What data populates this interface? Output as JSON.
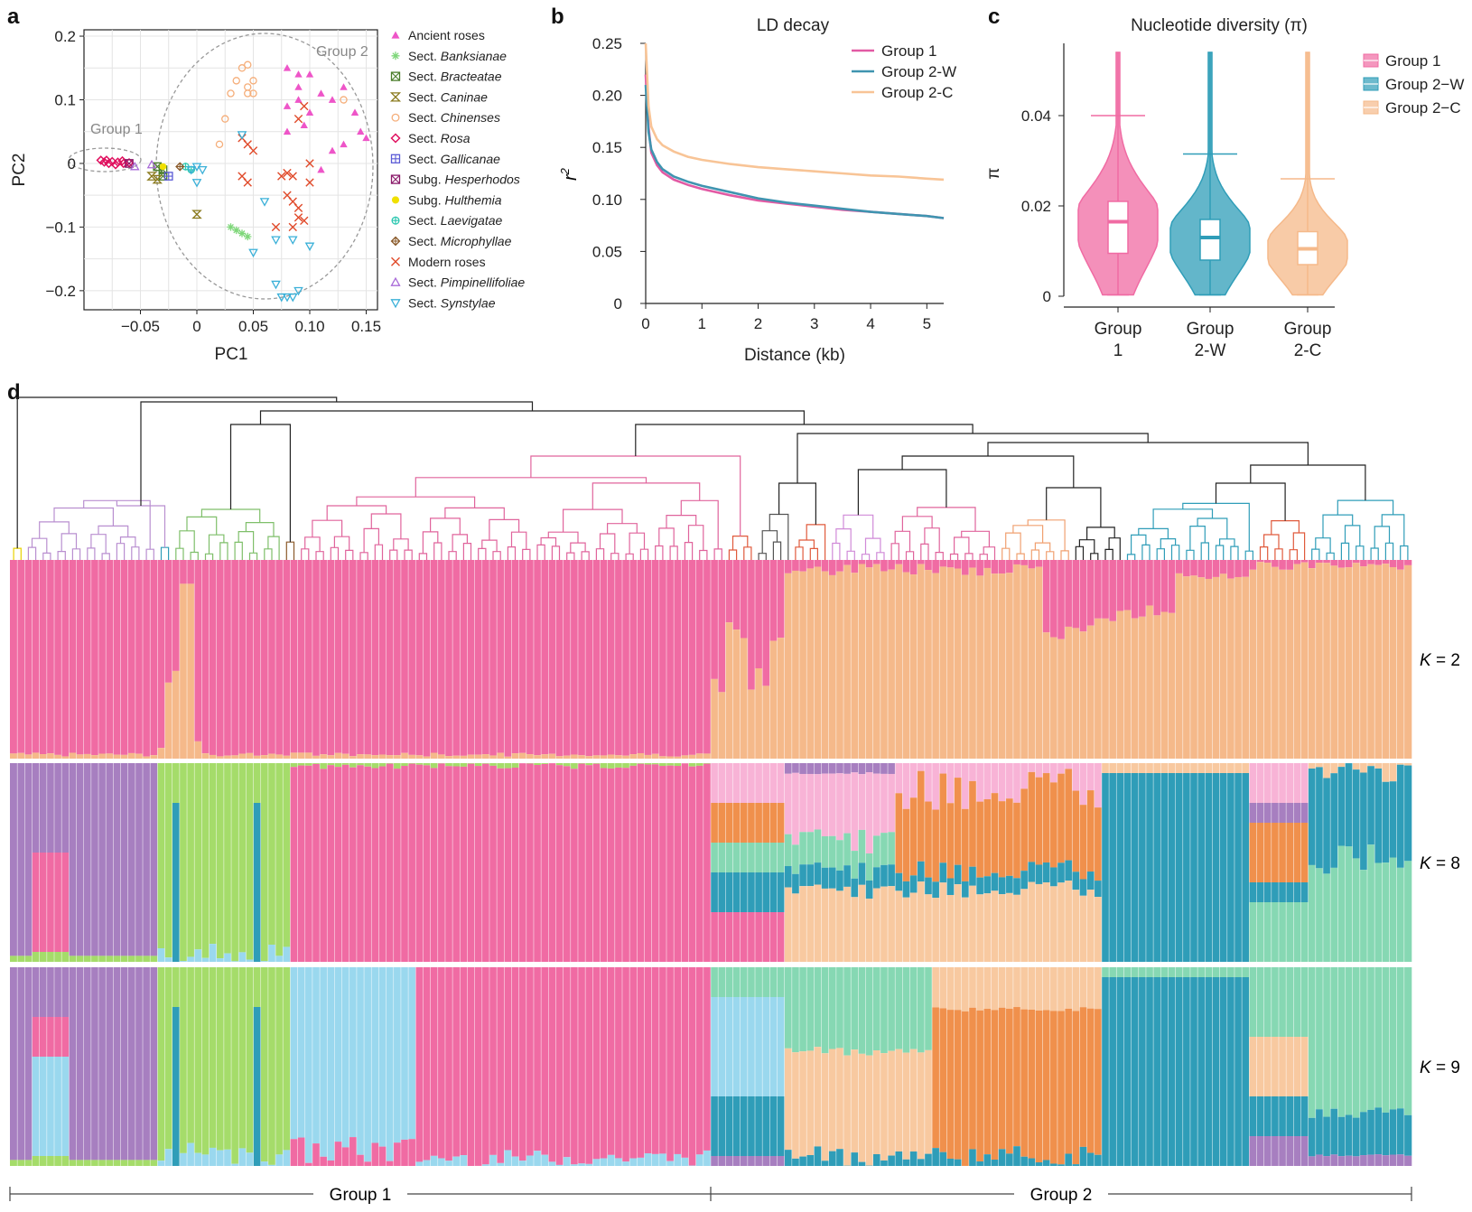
{
  "colors": {
    "pink": "#f06ba3",
    "orange": "#f5b98a",
    "teal": "#2f9db8",
    "green": "#a5dc6a",
    "purple": "#a77fc0",
    "lightblue": "#9ad8ee",
    "lightpink": "#f8b3d6",
    "deeporange": "#f0904c",
    "mint": "#86d8b3",
    "lightorange": "#f8c9a0"
  },
  "panel_a": {
    "letter": "a",
    "xlabel": "PC1",
    "ylabel": "PC2",
    "xticks": [
      "−0.05",
      "0",
      "0.05",
      "0.10",
      "0.15"
    ],
    "yticks": [
      "0.2",
      "0.1",
      "0",
      "−0.1",
      "−0.2"
    ],
    "group1_label": "Group 1",
    "group2_label": "Group 2",
    "legend": [
      {
        "prefix": "",
        "name": "Ancient roses",
        "italic": false,
        "symbol": "triangle",
        "color": "#ee55c8"
      },
      {
        "prefix": "Sect. ",
        "name": "Banksianae",
        "italic": true,
        "symbol": "star",
        "color": "#7fd77a"
      },
      {
        "prefix": "Sect. ",
        "name": "Bracteatae",
        "italic": true,
        "symbol": "boxx",
        "color": "#4a7d2a"
      },
      {
        "prefix": "Sect. ",
        "name": "Caninae",
        "italic": true,
        "symbol": "hourglass",
        "color": "#8a7a1c"
      },
      {
        "prefix": "Sect. ",
        "name": "Chinenses",
        "italic": true,
        "symbol": "circle",
        "color": "#f5ae7a"
      },
      {
        "prefix": "Sect. ",
        "name": "Rosa",
        "italic": true,
        "symbol": "diamond",
        "color": "#e0115f"
      },
      {
        "prefix": "Sect. ",
        "name": "Gallicanae",
        "italic": true,
        "symbol": "boxplus",
        "color": "#5b5bd6"
      },
      {
        "prefix": "Subg. ",
        "name": "Hesperhodos",
        "italic": true,
        "symbol": "boxx",
        "color": "#8a1a6a"
      },
      {
        "prefix": "Subg. ",
        "name": "Hulthemia",
        "italic": true,
        "symbol": "dot",
        "color": "#f0e000"
      },
      {
        "prefix": "Sect. ",
        "name": "Laevigatae",
        "italic": true,
        "symbol": "circleplus",
        "color": "#2cc7b0"
      },
      {
        "prefix": "Sect. ",
        "name": "Microphyllae",
        "italic": true,
        "symbol": "diamondplus",
        "color": "#8a5a2a"
      },
      {
        "prefix": "",
        "name": "Modern roses",
        "italic": false,
        "symbol": "x",
        "color": "#e04a2a"
      },
      {
        "prefix": "Sect. ",
        "name": "Pimpinellifoliae",
        "italic": true,
        "symbol": "triopen",
        "color": "#a86ad8"
      },
      {
        "prefix": "Sect. ",
        "name": "Synstylae",
        "italic": true,
        "symbol": "trident",
        "color": "#3ab0d8"
      }
    ],
    "points": {
      "Ancient roses": [
        [
          0.08,
          0.15
        ],
        [
          0.09,
          0.12
        ],
        [
          0.1,
          0.14
        ],
        [
          0.11,
          0.11
        ],
        [
          0.13,
          0.12
        ],
        [
          0.14,
          0.08
        ],
        [
          0.145,
          0.05
        ],
        [
          0.09,
          0.1
        ],
        [
          0.1,
          0.08
        ],
        [
          0.12,
          0.1
        ],
        [
          0.12,
          0.02
        ],
        [
          0.11,
          -0.01
        ],
        [
          0.08,
          0.09
        ],
        [
          0.09,
          0.14
        ],
        [
          0.13,
          0.03
        ],
        [
          0.15,
          0.04
        ],
        [
          0.08,
          0.05
        ],
        [
          0.095,
          0.06
        ]
      ],
      "Sect. Banksianae": [
        [
          0.03,
          -0.1
        ],
        [
          0.035,
          -0.105
        ],
        [
          0.04,
          -0.11
        ],
        [
          0.045,
          -0.115
        ]
      ],
      "Sect. Bracteatae": [
        [
          -0.035,
          -0.005
        ],
        [
          -0.03,
          -0.01
        ],
        [
          -0.03,
          -0.02
        ]
      ],
      "Sect. Caninae": [
        [
          -0.04,
          -0.02
        ],
        [
          -0.035,
          -0.025
        ],
        [
          0,
          -0.08
        ]
      ],
      "Sect. Chinenses": [
        [
          0.035,
          0.13
        ],
        [
          0.04,
          0.15
        ],
        [
          0.045,
          0.155
        ],
        [
          0.05,
          0.13
        ],
        [
          0.045,
          0.12
        ],
        [
          0.03,
          0.11
        ],
        [
          0.025,
          0.07
        ],
        [
          0.02,
          0.03
        ],
        [
          0.045,
          0.11
        ],
        [
          0.13,
          0.1
        ],
        [
          0.05,
          0.11
        ]
      ],
      "Sect. Rosa": [
        [
          -0.085,
          0.005
        ],
        [
          -0.08,
          0.005
        ],
        [
          -0.075,
          0.003
        ],
        [
          -0.07,
          0.002
        ],
        [
          -0.065,
          0.0
        ],
        [
          -0.06,
          0.001
        ],
        [
          -0.078,
          0.0
        ],
        [
          -0.072,
          -0.002
        ],
        [
          -0.066,
          0.004
        ],
        [
          -0.082,
          0.002
        ]
      ],
      "Sect. Gallicanae": [
        [
          -0.025,
          -0.02
        ]
      ],
      "Subg. Hesperhodos": [
        [
          -0.06,
          0.0
        ]
      ],
      "Subg. Hulthemia": [
        [
          -0.03,
          -0.005
        ]
      ],
      "Sect. Laevigatae": [
        [
          -0.01,
          -0.005
        ],
        [
          -0.005,
          -0.01
        ]
      ],
      "Sect. Microphyllae": [
        [
          -0.015,
          -0.005
        ]
      ],
      "Modern roses": [
        [
          0.04,
          0.04
        ],
        [
          0.045,
          0.03
        ],
        [
          0.05,
          0.02
        ],
        [
          0.04,
          -0.02
        ],
        [
          0.045,
          -0.03
        ],
        [
          0.075,
          -0.02
        ],
        [
          0.08,
          -0.015
        ],
        [
          0.085,
          -0.02
        ],
        [
          0.08,
          -0.05
        ],
        [
          0.085,
          -0.06
        ],
        [
          0.09,
          -0.07
        ],
        [
          0.09,
          -0.085
        ],
        [
          0.095,
          -0.09
        ],
        [
          0.1,
          0.0
        ],
        [
          0.1,
          -0.03
        ],
        [
          0.09,
          0.07
        ],
        [
          0.095,
          0.09
        ],
        [
          0.085,
          -0.1
        ],
        [
          0.07,
          -0.1
        ]
      ],
      "Sect. Pimpinellifoliae": [
        [
          -0.055,
          -0.005
        ],
        [
          -0.04,
          -0.002
        ]
      ],
      "Sect. Synstylae": [
        [
          -0.005,
          -0.01
        ],
        [
          0.0,
          -0.005
        ],
        [
          0.005,
          -0.01
        ],
        [
          0.04,
          0.045
        ],
        [
          0.05,
          -0.14
        ],
        [
          0.07,
          -0.19
        ],
        [
          0.075,
          -0.21
        ],
        [
          0.08,
          -0.21
        ],
        [
          0.085,
          -0.21
        ],
        [
          0.09,
          -0.2
        ],
        [
          0.1,
          -0.13
        ],
        [
          0.085,
          -0.12
        ],
        [
          0.06,
          -0.06
        ],
        [
          0.07,
          -0.12
        ],
        [
          0.0,
          -0.03
        ]
      ]
    }
  },
  "panel_b": {
    "letter": "b",
    "title": "LD decay",
    "xlabel": "Distance (kb)",
    "ylabel_r": "r",
    "ylabel_sup": "2",
    "xticks": [
      "0",
      "1",
      "2",
      "3",
      "4",
      "5"
    ],
    "yticks": [
      "0.25",
      "0.20",
      "0.15",
      "0.10",
      "0.05",
      "0"
    ],
    "legend": [
      "Group 1",
      "Group 2-W",
      "Group 2-C"
    ]
  },
  "panel_c": {
    "letter": "c",
    "title": "Nucleotide diversity (π)",
    "ylabel": "π",
    "yticks": [
      "0.04",
      "0.02",
      "0"
    ],
    "legend": [
      "Group 1",
      "Group 2−W",
      "Group 2−C"
    ],
    "categories": [
      [
        "Group",
        "1"
      ],
      [
        "Group",
        "2-W"
      ],
      [
        "Group",
        "2-C"
      ]
    ]
  },
  "panel_d": {
    "letter": "d",
    "k_labels": [
      "K = 2",
      "K = 8",
      "K = 9"
    ],
    "k_prefix": "K",
    "k_values": [
      " = 2",
      " = 8",
      " = 9"
    ],
    "group1": "Group 1",
    "group2": "Group 2"
  },
  "chart_data": [
    {
      "type": "scatter",
      "panel": "a",
      "xlabel": "PC1",
      "ylabel": "PC2",
      "xlim": [
        -0.1,
        0.16
      ],
      "ylim": [
        -0.23,
        0.21
      ],
      "series_note_ref": "panel_a.points"
    },
    {
      "type": "line",
      "panel": "b",
      "title": "LD decay",
      "xlabel": "Distance (kb)",
      "ylabel": "r2",
      "xlim": [
        0,
        5.3
      ],
      "ylim": [
        0,
        0.25
      ],
      "x": [
        0,
        0.05,
        0.1,
        0.2,
        0.3,
        0.5,
        0.75,
        1,
        1.5,
        2,
        2.5,
        3,
        3.5,
        4,
        4.5,
        5,
        5.3
      ],
      "series": [
        {
          "name": "Group 1",
          "color": "#e25aa4",
          "values": [
            0.22,
            0.17,
            0.145,
            0.133,
            0.126,
            0.119,
            0.114,
            0.11,
            0.104,
            0.099,
            0.096,
            0.093,
            0.09,
            0.088,
            0.086,
            0.084,
            0.082
          ]
        },
        {
          "name": "Group 2-W",
          "color": "#3f94b0",
          "values": [
            0.21,
            0.165,
            0.148,
            0.136,
            0.129,
            0.122,
            0.117,
            0.113,
            0.107,
            0.101,
            0.097,
            0.094,
            0.091,
            0.088,
            0.086,
            0.084,
            0.082
          ]
        },
        {
          "name": "Group 2-C",
          "color": "#f8c496",
          "values": [
            0.25,
            0.19,
            0.17,
            0.158,
            0.152,
            0.146,
            0.141,
            0.138,
            0.134,
            0.131,
            0.129,
            0.127,
            0.125,
            0.123,
            0.122,
            0.12,
            0.119
          ]
        }
      ]
    },
    {
      "type": "violin",
      "panel": "c",
      "title": "Nucleotide diversity (π)",
      "ylabel": "π",
      "ylim": [
        0,
        0.056
      ],
      "series": [
        {
          "name": "Group 1",
          "color": "#f06ba3",
          "median": 0.0165,
          "q1": 0.0095,
          "q3": 0.021,
          "min": 0.0003,
          "max": 0.054,
          "mean_line": 0.04
        },
        {
          "name": "Group 2-W",
          "color": "#2f9db8",
          "median": 0.013,
          "q1": 0.008,
          "q3": 0.017,
          "min": 0.0003,
          "max": 0.054,
          "mean_line": 0.0315
        },
        {
          "name": "Group 2-C",
          "color": "#f5b98a",
          "median": 0.0105,
          "q1": 0.007,
          "q3": 0.0143,
          "min": 0.0003,
          "max": 0.054,
          "mean_line": 0.026
        }
      ]
    },
    {
      "type": "admixture",
      "panel": "d",
      "K": [
        2,
        8,
        9
      ],
      "samples": 190,
      "group1_samples": 95,
      "group2_samples": 95
    }
  ]
}
